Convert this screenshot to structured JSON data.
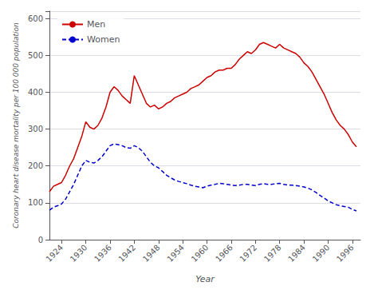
{
  "chart_data": {
    "type": "line",
    "xlabel": "Year",
    "ylabel": "Coronary heart disease mortality per 100 000 population",
    "x": [
      1921,
      1922,
      1923,
      1924,
      1925,
      1926,
      1927,
      1928,
      1929,
      1930,
      1931,
      1932,
      1933,
      1934,
      1935,
      1936,
      1937,
      1938,
      1939,
      1940,
      1941,
      1942,
      1943,
      1944,
      1945,
      1946,
      1947,
      1948,
      1949,
      1950,
      1951,
      1952,
      1953,
      1954,
      1955,
      1956,
      1957,
      1958,
      1959,
      1960,
      1961,
      1962,
      1963,
      1964,
      1965,
      1966,
      1967,
      1968,
      1969,
      1970,
      1971,
      1972,
      1973,
      1974,
      1975,
      1976,
      1977,
      1978,
      1979,
      1980,
      1981,
      1982,
      1983,
      1984,
      1985,
      1986,
      1987,
      1988,
      1989,
      1990,
      1991,
      1992,
      1993,
      1994,
      1995,
      1996,
      1997
    ],
    "series": [
      {
        "name": "Men",
        "color": "#cc0000",
        "line_style": "solid",
        "values": [
          130,
          145,
          150,
          155,
          175,
          200,
          220,
          250,
          280,
          320,
          305,
          300,
          310,
          330,
          360,
          400,
          415,
          405,
          390,
          380,
          370,
          445,
          420,
          395,
          370,
          360,
          365,
          355,
          360,
          370,
          375,
          385,
          390,
          395,
          400,
          410,
          415,
          420,
          430,
          440,
          445,
          455,
          460,
          460,
          465,
          465,
          475,
          490,
          500,
          510,
          505,
          515,
          530,
          535,
          530,
          525,
          520,
          530,
          520,
          515,
          510,
          505,
          495,
          480,
          470,
          455,
          435,
          415,
          395,
          370,
          345,
          325,
          310,
          300,
          285,
          265,
          252
        ]
      },
      {
        "name": "Women",
        "color": "#0000cc",
        "line_style": "dashed",
        "values": [
          80,
          88,
          92,
          97,
          110,
          130,
          150,
          175,
          200,
          215,
          210,
          208,
          215,
          225,
          240,
          255,
          260,
          258,
          255,
          250,
          248,
          255,
          250,
          240,
          225,
          210,
          200,
          195,
          185,
          175,
          168,
          162,
          158,
          155,
          152,
          148,
          145,
          143,
          141,
          145,
          148,
          150,
          153,
          152,
          150,
          148,
          147,
          148,
          150,
          150,
          148,
          147,
          150,
          152,
          150,
          150,
          152,
          153,
          150,
          148,
          148,
          147,
          145,
          143,
          140,
          135,
          128,
          120,
          113,
          105,
          100,
          95,
          92,
          90,
          88,
          82,
          78
        ]
      }
    ],
    "xlim": [
      1921,
      1998
    ],
    "xticks": [
      1924,
      1930,
      1936,
      1942,
      1948,
      1954,
      1960,
      1966,
      1972,
      1978,
      1984,
      1990,
      1996
    ],
    "ylim": [
      0,
      620
    ],
    "yticks": [
      0,
      100,
      200,
      300,
      400,
      500,
      600
    ],
    "grid": true,
    "legend": "upper left"
  }
}
